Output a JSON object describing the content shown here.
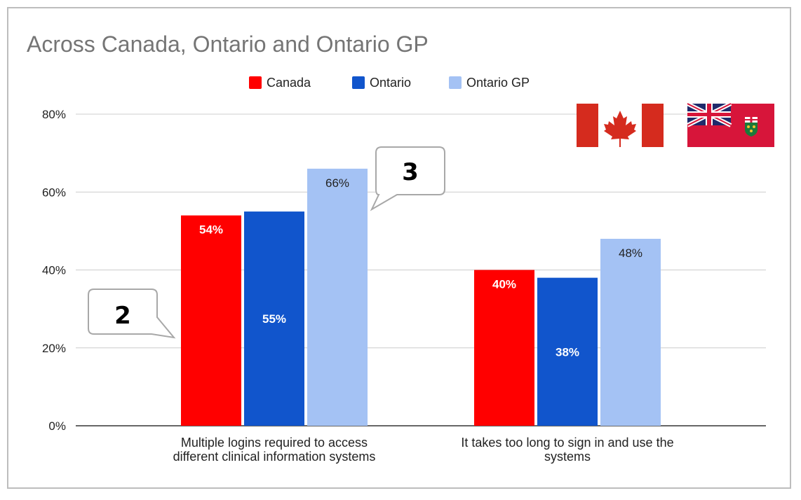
{
  "chart_data": {
    "type": "bar",
    "title": "Across Canada, Ontario and Ontario GP",
    "categories": [
      [
        "Multiple logins required to access",
        "different clinical information systems"
      ],
      [
        "It takes too long to sign in and use the",
        "systems"
      ]
    ],
    "series": [
      {
        "name": "Canada",
        "color": "#ff0000",
        "values": [
          54,
          40
        ],
        "labels": [
          "54%",
          "40%"
        ],
        "label_color": "#ffffff"
      },
      {
        "name": "Ontario",
        "color": "#1155cc",
        "values": [
          55,
          38
        ],
        "labels": [
          "55%",
          "38%"
        ],
        "label_color": "#ffffff"
      },
      {
        "name": "Ontario GP",
        "color": "#a4c2f4",
        "values": [
          66,
          48
        ],
        "labels": [
          "66%",
          "48%"
        ],
        "label_color": "#222222"
      }
    ],
    "ylim": [
      0,
      80
    ],
    "yticks": [
      0,
      20,
      40,
      60,
      80
    ],
    "ytick_labels": [
      "0%",
      "20%",
      "40%",
      "60%",
      "80%"
    ],
    "legend_position": "top-center",
    "grid": true
  },
  "callouts": [
    {
      "text": "2",
      "target": "Canada bar, first category"
    },
    {
      "text": "3",
      "target": "Ontario GP bar, first category"
    }
  ],
  "flags": [
    {
      "name": "Flag of Canada"
    },
    {
      "name": "Flag of Ontario"
    }
  ],
  "colors": {
    "canada_red": "#d52b1e",
    "ontario_red": "#d7153a",
    "ontario_blue": "#1f2a6b",
    "shield_green": "#1b7a3a",
    "shield_gold": "#f2c230"
  }
}
